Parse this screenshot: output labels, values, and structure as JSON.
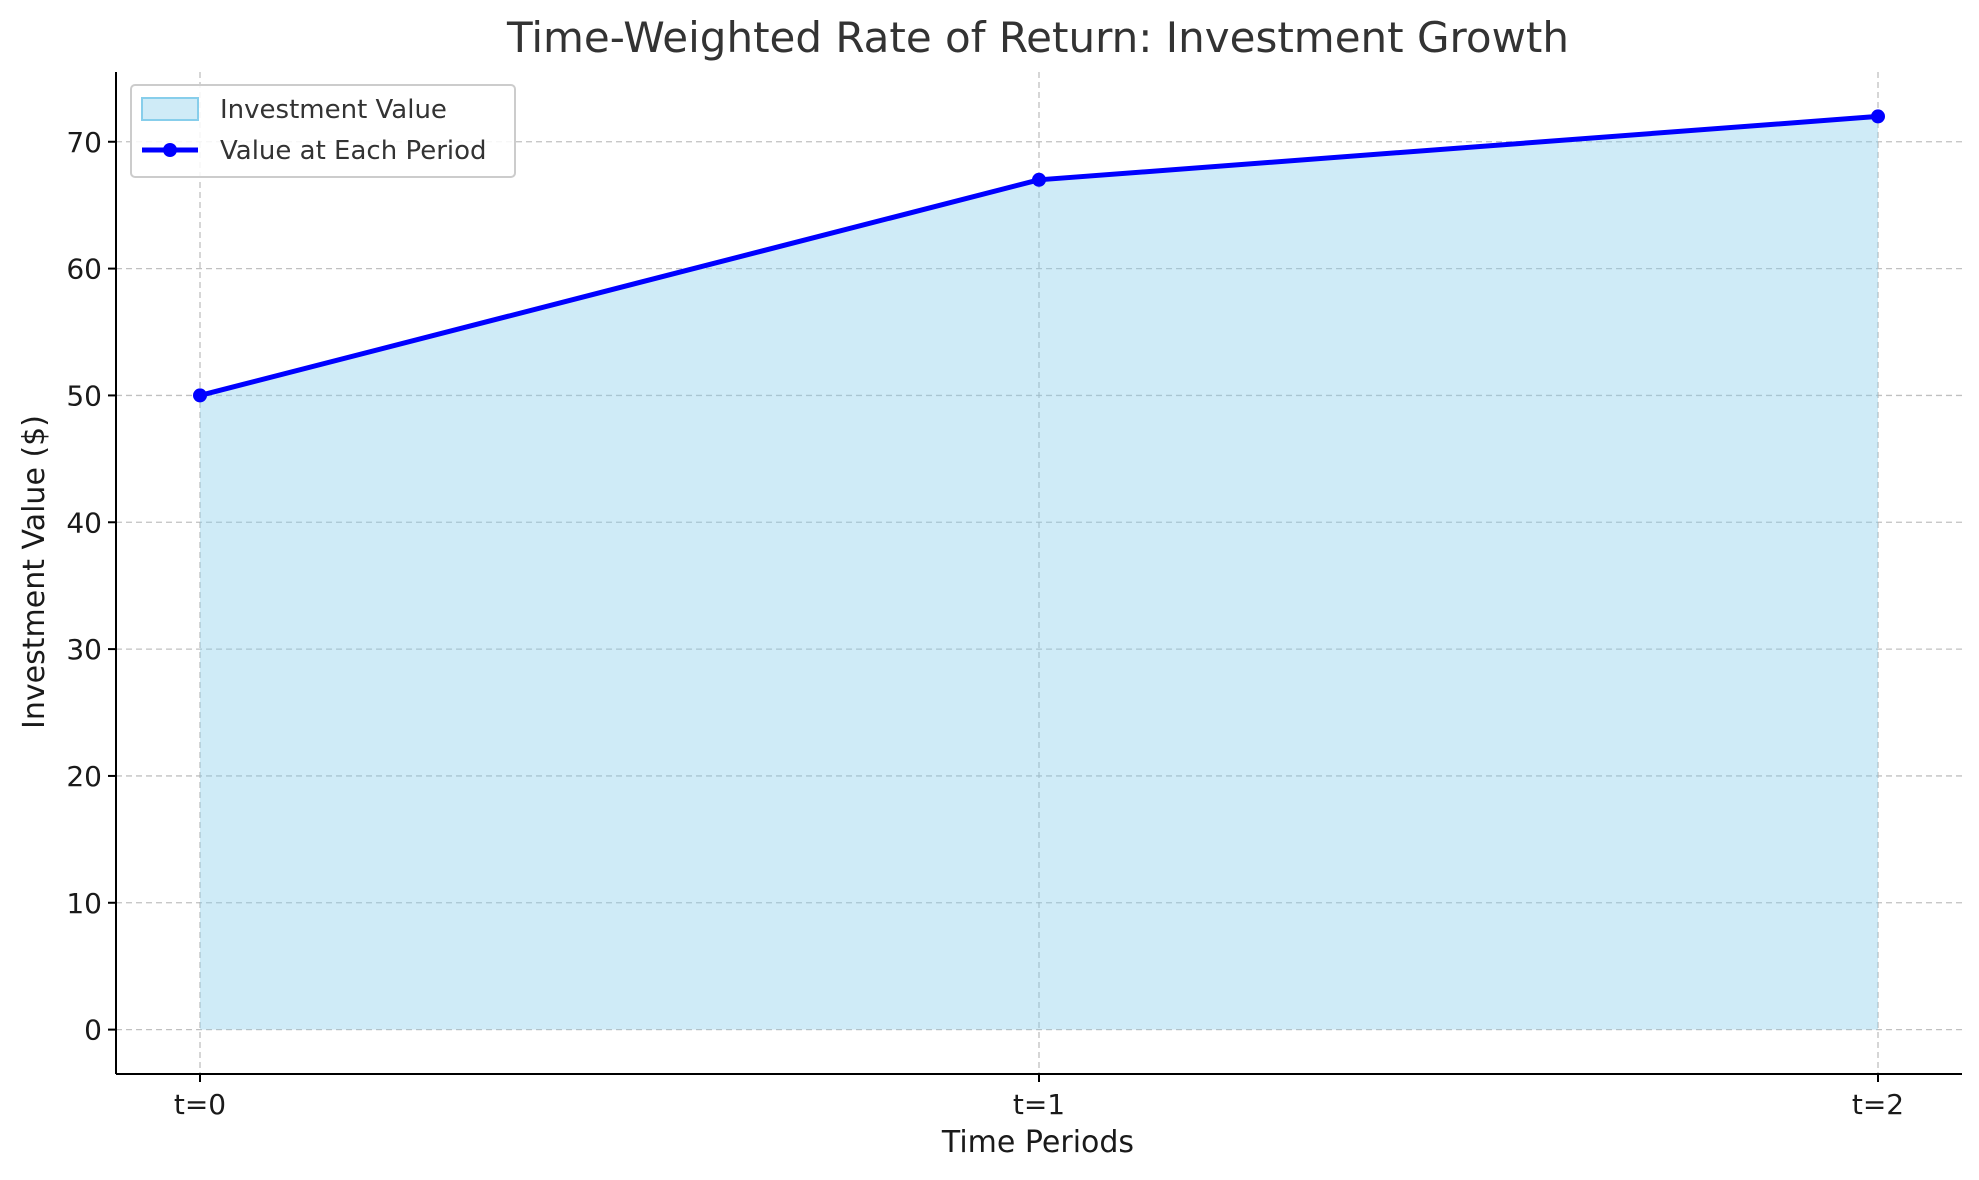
{
  "chart_data": {
    "type": "area",
    "title": "Time-Weighted Rate of Return: Investment Growth",
    "xlabel": "Time Periods",
    "ylabel": "Investment Value ($)",
    "categories": [
      "t=0",
      "t=1",
      "t=2"
    ],
    "ylim": [
      -3.5,
      75.5
    ],
    "yticks": [
      0,
      10,
      20,
      30,
      40,
      50,
      60,
      70
    ],
    "grid": true,
    "legend_position": "top-left",
    "series": [
      {
        "name": "Investment Value",
        "kind": "area",
        "values": [
          50,
          67,
          72
        ],
        "color": "#87ceeb"
      },
      {
        "name": "Value at Each Period",
        "kind": "line-markers",
        "values": [
          50,
          67,
          72
        ],
        "color": "#0000ff"
      }
    ]
  }
}
